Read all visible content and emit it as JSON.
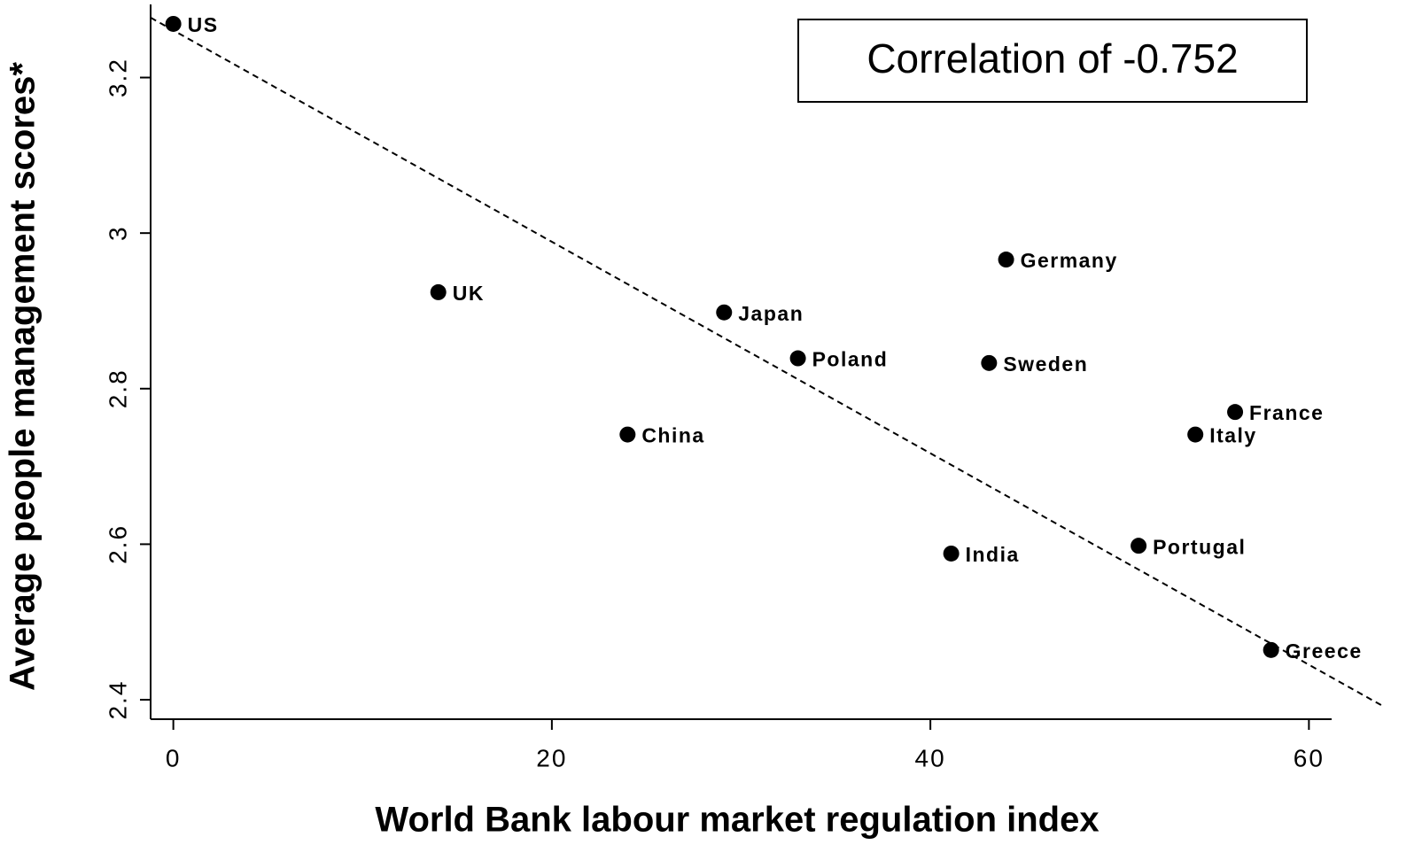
{
  "chart_data": {
    "type": "scatter",
    "x_label": "World Bank labour market regulation index",
    "y_label": "Average people management scores*",
    "annotation": "Correlation of -0.752",
    "labels": [
      "US",
      "UK",
      "Japan",
      "Poland",
      "China",
      "Germany",
      "Sweden",
      "India",
      "France",
      "Italy",
      "Portugal",
      "Greece"
    ],
    "x": [
      0,
      14,
      29.1,
      33,
      24,
      44,
      43.1,
      41.1,
      56.1,
      54,
      51,
      58
    ],
    "values": [
      3.269,
      2.924,
      2.898,
      2.839,
      2.741,
      2.966,
      2.833,
      2.588,
      2.77,
      2.741,
      2.598,
      2.464
    ],
    "color": "#000000",
    "trend_line": {
      "x": [
        -1.2,
        63.9
      ],
      "y": [
        3.277,
        2.392
      ]
    },
    "xlim": [
      -1.2,
      61.2
    ],
    "ylim": [
      2.375,
      3.294
    ],
    "xticks": [
      0,
      20,
      40,
      60
    ],
    "yticks": [
      2.4,
      2.6,
      2.8,
      3,
      3.2
    ]
  }
}
